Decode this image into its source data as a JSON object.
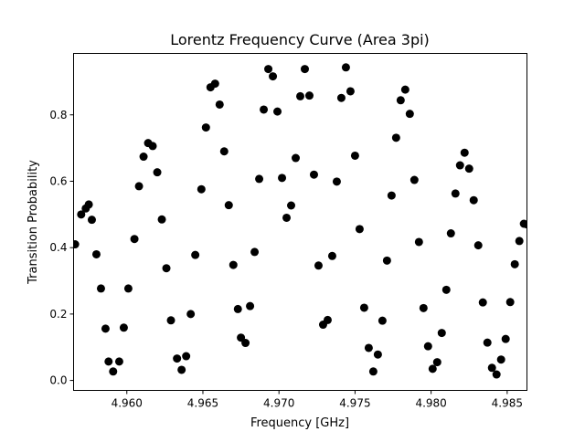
{
  "chart_data": {
    "type": "scatter",
    "title": "Lorentz Frequency Curve (Area 3pi)",
    "xlabel": "Frequency [GHz]",
    "ylabel": "Transition Probability",
    "xlim": [
      4.9565,
      4.9863
    ],
    "ylim": [
      -0.03,
      0.985
    ],
    "xticks": [
      4.96,
      4.965,
      4.97,
      4.975,
      4.98,
      4.985
    ],
    "xtick_labels": [
      "4.960",
      "4.965",
      "4.970",
      "4.975",
      "4.980",
      "4.985"
    ],
    "yticks": [
      0.0,
      0.2,
      0.4,
      0.6,
      0.8
    ],
    "ytick_labels": [
      "0.0",
      "0.2",
      "0.4",
      "0.6",
      "0.8"
    ],
    "grid": false,
    "marker_color": "#000000",
    "points": [
      [
        4.9566,
        0.41
      ],
      [
        4.957,
        0.5
      ],
      [
        4.9573,
        0.518
      ],
      [
        4.9575,
        0.53
      ],
      [
        4.9577,
        0.484
      ],
      [
        4.958,
        0.38
      ],
      [
        4.9583,
        0.277
      ],
      [
        4.9586,
        0.156
      ],
      [
        4.9588,
        0.057
      ],
      [
        4.9591,
        0.027
      ],
      [
        4.9595,
        0.057
      ],
      [
        4.9598,
        0.159
      ],
      [
        4.9601,
        0.277
      ],
      [
        4.9605,
        0.426
      ],
      [
        4.9608,
        0.585
      ],
      [
        4.9611,
        0.674
      ],
      [
        4.9614,
        0.715
      ],
      [
        4.9617,
        0.706
      ],
      [
        4.962,
        0.627
      ],
      [
        4.9623,
        0.485
      ],
      [
        4.9626,
        0.338
      ],
      [
        4.9629,
        0.181
      ],
      [
        4.9633,
        0.066
      ],
      [
        4.9636,
        0.032
      ],
      [
        4.9639,
        0.073
      ],
      [
        4.9642,
        0.2
      ],
      [
        4.9645,
        0.378
      ],
      [
        4.9649,
        0.576
      ],
      [
        4.9652,
        0.762
      ],
      [
        4.9655,
        0.883
      ],
      [
        4.9658,
        0.894
      ],
      [
        4.9661,
        0.831
      ],
      [
        4.9664,
        0.69
      ],
      [
        4.9667,
        0.528
      ],
      [
        4.967,
        0.348
      ],
      [
        4.9673,
        0.215
      ],
      [
        4.9675,
        0.129
      ],
      [
        4.9678,
        0.113
      ],
      [
        4.9681,
        0.224
      ],
      [
        4.9684,
        0.387
      ],
      [
        4.9687,
        0.607
      ],
      [
        4.969,
        0.816
      ],
      [
        4.9693,
        0.938
      ],
      [
        4.9696,
        0.916
      ],
      [
        4.9699,
        0.81
      ],
      [
        4.9702,
        0.61
      ],
      [
        4.9705,
        0.49
      ],
      [
        4.9708,
        0.527
      ],
      [
        4.9711,
        0.67
      ],
      [
        4.9714,
        0.856
      ],
      [
        4.9717,
        0.938
      ],
      [
        4.972,
        0.858
      ],
      [
        4.9723,
        0.62
      ],
      [
        4.9726,
        0.346
      ],
      [
        4.9729,
        0.168
      ],
      [
        4.9732,
        0.182
      ],
      [
        4.9735,
        0.375
      ],
      [
        4.9738,
        0.599
      ],
      [
        4.9741,
        0.851
      ],
      [
        4.9744,
        0.943
      ],
      [
        4.9747,
        0.871
      ],
      [
        4.975,
        0.677
      ],
      [
        4.9753,
        0.456
      ],
      [
        4.9756,
        0.219
      ],
      [
        4.9759,
        0.098
      ],
      [
        4.9762,
        0.027
      ],
      [
        4.9765,
        0.078
      ],
      [
        4.9768,
        0.18
      ],
      [
        4.9771,
        0.361
      ],
      [
        4.9774,
        0.557
      ],
      [
        4.9777,
        0.731
      ],
      [
        4.978,
        0.844
      ],
      [
        4.9783,
        0.876
      ],
      [
        4.9786,
        0.803
      ],
      [
        4.9789,
        0.604
      ],
      [
        4.9792,
        0.417
      ],
      [
        4.9795,
        0.218
      ],
      [
        4.9798,
        0.103
      ],
      [
        4.9801,
        0.035
      ],
      [
        4.9804,
        0.055
      ],
      [
        4.9807,
        0.143
      ],
      [
        4.981,
        0.273
      ],
      [
        4.9813,
        0.443
      ],
      [
        4.9816,
        0.563
      ],
      [
        4.9819,
        0.648
      ],
      [
        4.9822,
        0.686
      ],
      [
        4.9825,
        0.638
      ],
      [
        4.9828,
        0.543
      ],
      [
        4.9831,
        0.407
      ],
      [
        4.9834,
        0.235
      ],
      [
        4.9837,
        0.114
      ],
      [
        4.984,
        0.038
      ],
      [
        4.9843,
        0.018
      ],
      [
        4.9846,
        0.063
      ],
      [
        4.9849,
        0.125
      ],
      [
        4.9852,
        0.236
      ],
      [
        4.9855,
        0.35
      ],
      [
        4.9858,
        0.42
      ],
      [
        4.9861,
        0.472
      ],
      [
        4.9863,
        0.47
      ]
    ]
  }
}
